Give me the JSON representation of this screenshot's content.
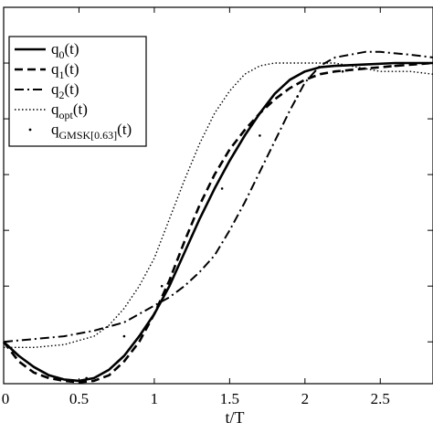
{
  "chart_data": {
    "type": "line",
    "title": "",
    "xlabel": "t/T",
    "ylabel": "",
    "xlim": [
      0,
      2.85
    ],
    "ylim": [
      -0.15,
      1.2
    ],
    "grid": false,
    "legend_position": "top-left",
    "x_ticks": [
      "0",
      "0.5",
      "1",
      "1.5",
      "2",
      "2.5"
    ],
    "x_tick_values": [
      0,
      0.5,
      1,
      1.5,
      2,
      2.5
    ],
    "y_tick_values": [
      0,
      0.2,
      0.4,
      0.6,
      0.8,
      1.0
    ],
    "legend": [
      {
        "base": "q",
        "sub": "0",
        "tail": "(t)",
        "style": "solid"
      },
      {
        "base": "q",
        "sub": "1",
        "tail": "(t)",
        "style": "dashed"
      },
      {
        "base": "q",
        "sub": "2",
        "tail": "(t)",
        "style": "dashdot"
      },
      {
        "base": "q",
        "sub": "opt",
        "tail": "(t)",
        "style": "dotted"
      },
      {
        "base": "q",
        "sub": "GMSK[0.63]",
        "tail": "(t)",
        "style": "point"
      }
    ],
    "series": [
      {
        "style": "solid",
        "x": [
          0,
          0.1,
          0.2,
          0.3,
          0.4,
          0.5,
          0.6,
          0.7,
          0.8,
          0.9,
          1.0,
          1.1,
          1.2,
          1.3,
          1.4,
          1.5,
          1.6,
          1.7,
          1.8,
          1.9,
          2.0,
          2.1,
          2.2,
          2.4,
          2.6,
          2.85
        ],
        "y": [
          0.0,
          -0.05,
          -0.09,
          -0.12,
          -0.135,
          -0.14,
          -0.13,
          -0.1,
          -0.05,
          0.02,
          0.1,
          0.2,
          0.32,
          0.44,
          0.55,
          0.65,
          0.74,
          0.82,
          0.89,
          0.94,
          0.97,
          0.985,
          0.99,
          0.995,
          1.0,
          1.0
        ]
      },
      {
        "style": "dashed",
        "x": [
          0,
          0.1,
          0.2,
          0.3,
          0.4,
          0.5,
          0.6,
          0.7,
          0.8,
          0.9,
          1.0,
          1.1,
          1.2,
          1.3,
          1.4,
          1.5,
          1.6,
          1.7,
          1.8,
          1.9,
          2.0,
          2.1,
          2.2,
          2.4,
          2.6,
          2.85
        ],
        "y": [
          0.0,
          -0.07,
          -0.11,
          -0.13,
          -0.14,
          -0.145,
          -0.14,
          -0.12,
          -0.07,
          0.0,
          0.1,
          0.22,
          0.36,
          0.49,
          0.6,
          0.69,
          0.76,
          0.82,
          0.87,
          0.91,
          0.94,
          0.96,
          0.97,
          0.98,
          0.99,
          1.0
        ]
      },
      {
        "style": "dashdot",
        "x": [
          0,
          0.2,
          0.4,
          0.6,
          0.8,
          0.9,
          1.0,
          1.1,
          1.2,
          1.3,
          1.4,
          1.5,
          1.6,
          1.7,
          1.8,
          1.9,
          2.0,
          2.1,
          2.2,
          2.3,
          2.4,
          2.5,
          2.6,
          2.7,
          2.85
        ],
        "y": [
          0.0,
          0.01,
          0.02,
          0.04,
          0.07,
          0.1,
          0.13,
          0.16,
          0.2,
          0.25,
          0.31,
          0.4,
          0.5,
          0.61,
          0.72,
          0.83,
          0.93,
          0.99,
          1.02,
          1.03,
          1.04,
          1.04,
          1.035,
          1.03,
          1.02
        ]
      },
      {
        "style": "dotted",
        "x": [
          0,
          0.2,
          0.4,
          0.6,
          0.7,
          0.8,
          0.9,
          1.0,
          1.1,
          1.2,
          1.3,
          1.4,
          1.5,
          1.6,
          1.7,
          1.8,
          1.9,
          2.0,
          2.2,
          2.3,
          2.4,
          2.5,
          2.6,
          2.7,
          2.85
        ],
        "y": [
          -0.02,
          -0.02,
          -0.01,
          0.02,
          0.06,
          0.12,
          0.2,
          0.3,
          0.44,
          0.58,
          0.71,
          0.82,
          0.9,
          0.96,
          0.99,
          1.0,
          1.0,
          1.0,
          1.0,
          0.99,
          0.98,
          0.97,
          0.97,
          0.97,
          0.96
        ]
      },
      {
        "style": "point",
        "x": [
          0.3,
          0.55,
          0.8,
          1.05,
          1.25,
          1.45,
          1.7,
          1.95,
          2.25,
          2.6
        ],
        "y": [
          -0.12,
          -0.13,
          0.02,
          0.2,
          0.38,
          0.55,
          0.74,
          0.88,
          0.97,
          0.99
        ]
      }
    ]
  }
}
